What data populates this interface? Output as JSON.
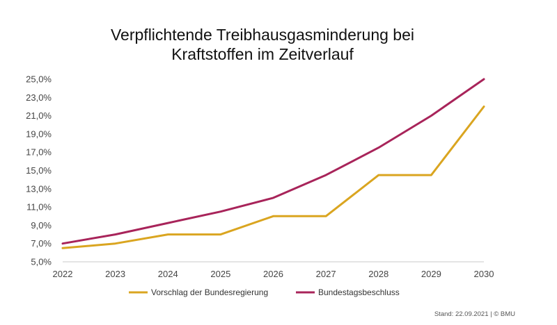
{
  "chart_data": {
    "type": "line",
    "title_lines": [
      "Verpflichtende Treibhausgasminderung bei",
      "Kraftstoffen im Zeitverlauf"
    ],
    "x": [
      "2022",
      "2023",
      "2024",
      "2025",
      "2026",
      "2027",
      "2028",
      "2029",
      "2030"
    ],
    "ylim": [
      5.0,
      25.0
    ],
    "yticks": [
      "5,0%",
      "7,0%",
      "9,0%",
      "11,0%",
      "13,0%",
      "15,0%",
      "17,0%",
      "19,0%",
      "21,0%",
      "23,0%",
      "25,0%"
    ],
    "ytick_values": [
      5,
      7,
      9,
      11,
      13,
      15,
      17,
      19,
      21,
      23,
      25
    ],
    "grid": false,
    "legend_position": "bottom",
    "series": [
      {
        "name": "Vorschlag der Bundesregierung",
        "color": "#DAA520",
        "values": [
          6.5,
          7.0,
          8.0,
          8.0,
          10.0,
          10.0,
          14.5,
          14.5,
          22.0
        ]
      },
      {
        "name": "Bundestagsbeschluss",
        "color": "#A8245A",
        "values": [
          7.0,
          8.0,
          9.25,
          10.5,
          12.0,
          14.5,
          17.5,
          21.0,
          25.0
        ]
      }
    ]
  },
  "footnote": "Stand: 22.09.2021 | © BMU"
}
